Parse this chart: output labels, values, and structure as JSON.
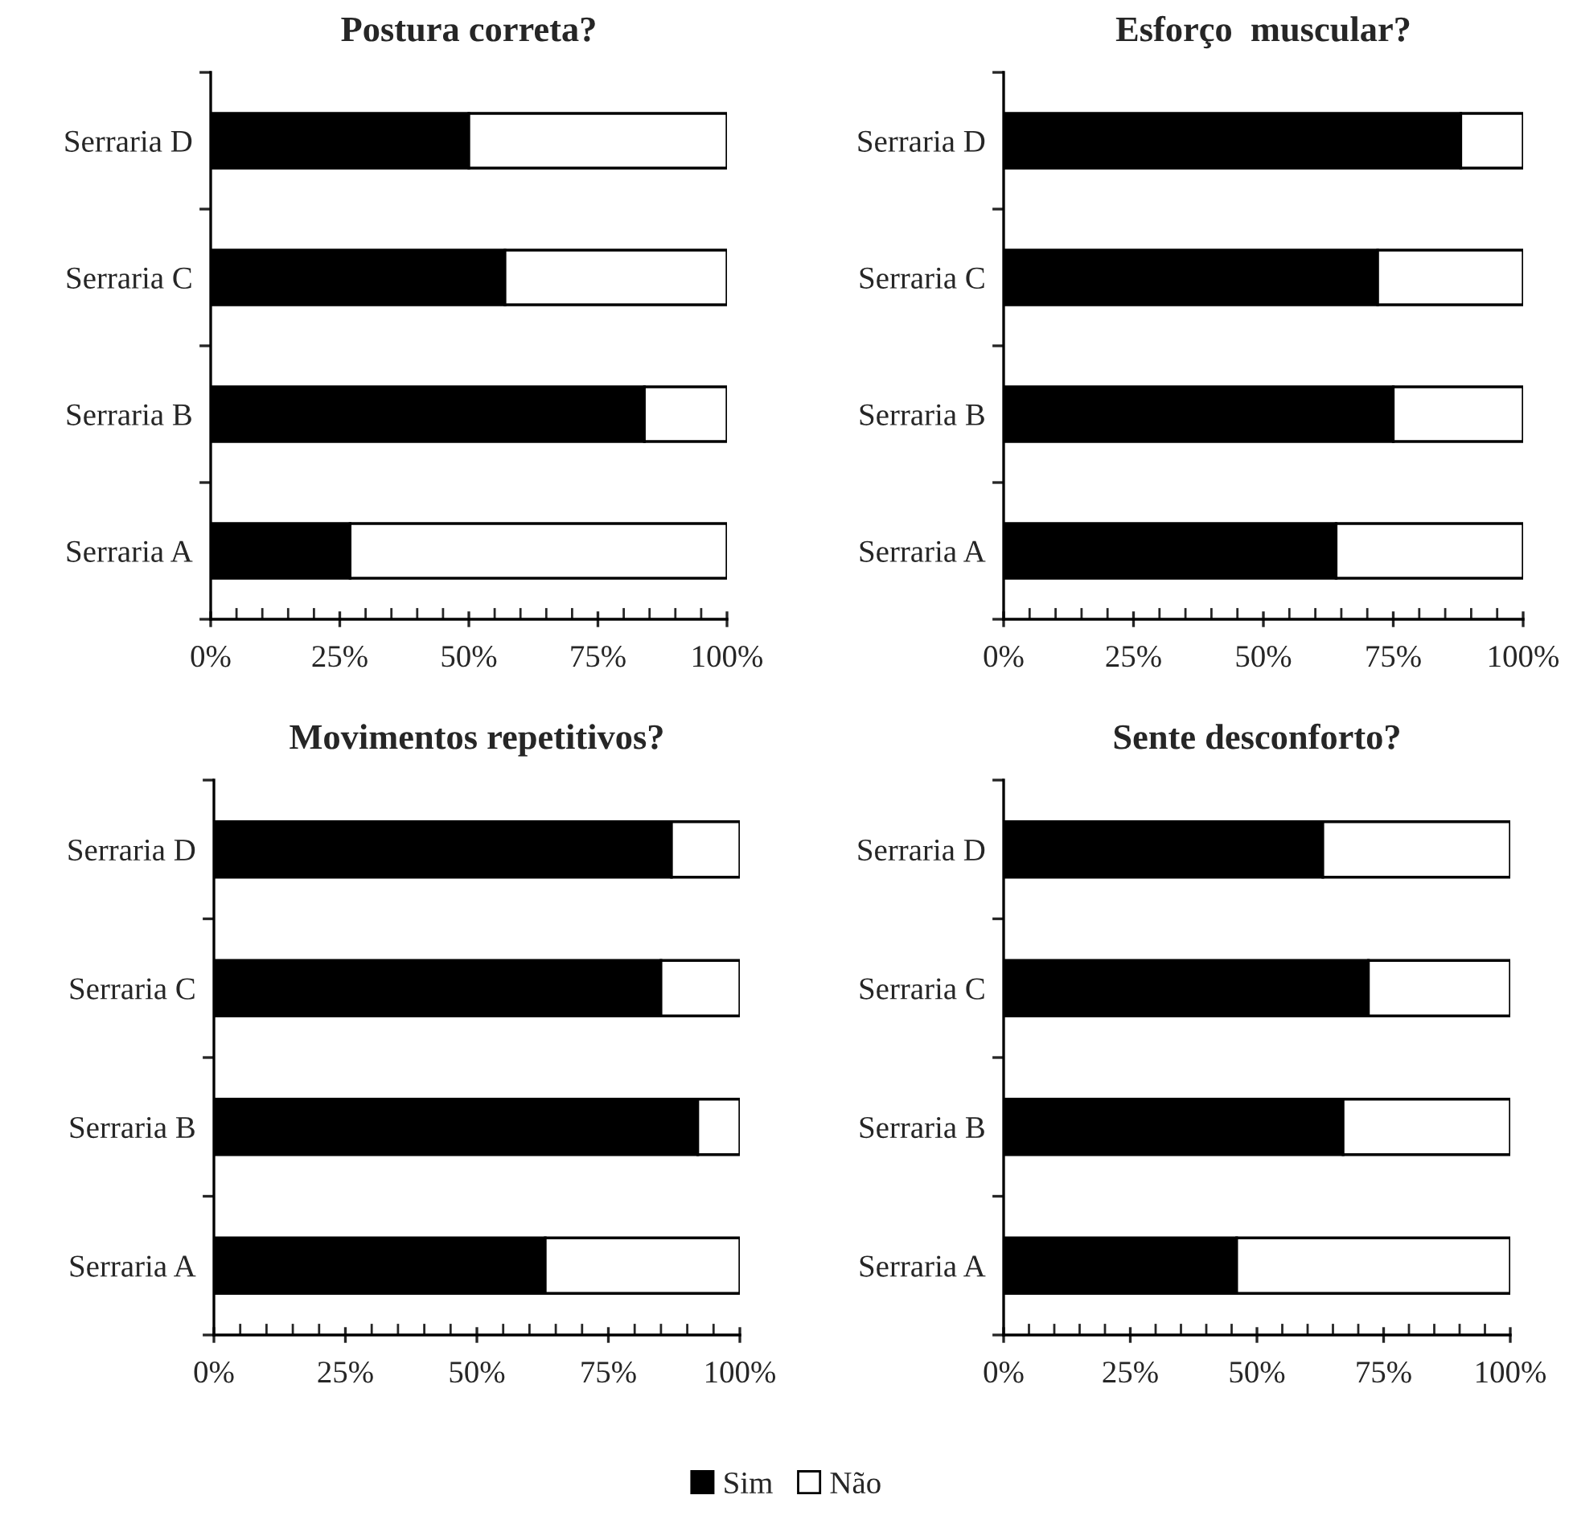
{
  "chart_data": [
    {
      "type": "bar",
      "orientation": "horizontal",
      "stacked": true,
      "title": "Postura correta?",
      "categories": [
        "Serraria D",
        "Serraria C",
        "Serraria B",
        "Serraria A"
      ],
      "series": [
        {
          "name": "Sim",
          "color": "#000000",
          "values": [
            50,
            57,
            84,
            27
          ]
        },
        {
          "name": "Não",
          "color": "#ffffff",
          "values": [
            50,
            43,
            16,
            73
          ]
        }
      ],
      "xlim": [
        0,
        100
      ],
      "xticks": [
        {
          "value": 0,
          "label": "0%"
        },
        {
          "value": 25,
          "label": "25%"
        },
        {
          "value": 50,
          "label": "50%"
        },
        {
          "value": 75,
          "label": "75%"
        },
        {
          "value": 100,
          "label": "100%"
        }
      ],
      "grid": false,
      "legend": "bottom"
    },
    {
      "type": "bar",
      "orientation": "horizontal",
      "stacked": true,
      "title": "Esforço  muscular?",
      "categories": [
        "Serraria D",
        "Serraria C",
        "Serraria B",
        "Serraria A"
      ],
      "series": [
        {
          "color": "#000000",
          "values": [
            88,
            72,
            75,
            64
          ]
        },
        {
          "color": "#ffffff",
          "values": [
            12,
            28,
            25,
            36
          ]
        }
      ],
      "xlim": [
        0,
        100
      ],
      "xticks": [
        {
          "value": 0,
          "label": "0%"
        },
        {
          "value": 25,
          "label": "25%"
        },
        {
          "value": 50,
          "label": "50%"
        },
        {
          "value": 75,
          "label": "75%"
        },
        {
          "value": 100,
          "label": "100%"
        }
      ],
      "grid": false
    },
    {
      "type": "bar",
      "orientation": "horizontal",
      "stacked": true,
      "title": "Movimentos repetitivos?",
      "categories": [
        "Serraria D",
        "Serraria C",
        "Serraria B",
        "Serraria A"
      ],
      "series": [
        {
          "color": "#000000",
          "values": [
            87,
            85,
            92,
            63
          ]
        },
        {
          "color": "#ffffff",
          "values": [
            13,
            15,
            8,
            37
          ]
        }
      ],
      "xlim": [
        0,
        100
      ],
      "xticks": [
        {
          "value": 0,
          "label": "0%"
        },
        {
          "value": 25,
          "label": "25%"
        },
        {
          "value": 50,
          "label": "50%"
        },
        {
          "value": 75,
          "label": "75%"
        },
        {
          "value": 100,
          "label": "100%"
        }
      ],
      "grid": false
    },
    {
      "type": "bar",
      "orientation": "horizontal",
      "stacked": true,
      "title": "Sente desconforto?",
      "categories": [
        "Serraria D",
        "Serraria C",
        "Serraria B",
        "Serraria A"
      ],
      "series": [
        {
          "color": "#000000",
          "values": [
            63,
            72,
            67,
            46
          ]
        },
        {
          "color": "#ffffff",
          "values": [
            37,
            28,
            33,
            54
          ]
        }
      ],
      "xlim": [
        0,
        100
      ],
      "xticks": [
        {
          "value": 0,
          "label": "0%"
        },
        {
          "value": 25,
          "label": "25%"
        },
        {
          "value": 50,
          "label": "50%"
        },
        {
          "value": 75,
          "label": "75%"
        },
        {
          "value": 100,
          "label": "100%"
        }
      ],
      "grid": false
    }
  ]
}
